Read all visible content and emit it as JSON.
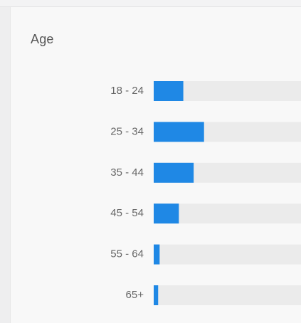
{
  "panel": {
    "title": "Age"
  },
  "colors": {
    "bar": "#1f88e5",
    "track": "#ebebeb",
    "card_background": "#f8f8f8"
  },
  "chart_data": {
    "type": "bar",
    "orientation": "horizontal",
    "title": "Age",
    "xlabel": "",
    "ylabel": "",
    "categories": [
      "18 - 24",
      "25 - 34",
      "35 - 44",
      "45 - 54",
      "55 - 64",
      "65+"
    ],
    "values": [
      0.2,
      0.34,
      0.27,
      0.17,
      0.04,
      0.03
    ],
    "xlim": [
      0,
      1
    ],
    "grid": false,
    "legend": "none"
  }
}
